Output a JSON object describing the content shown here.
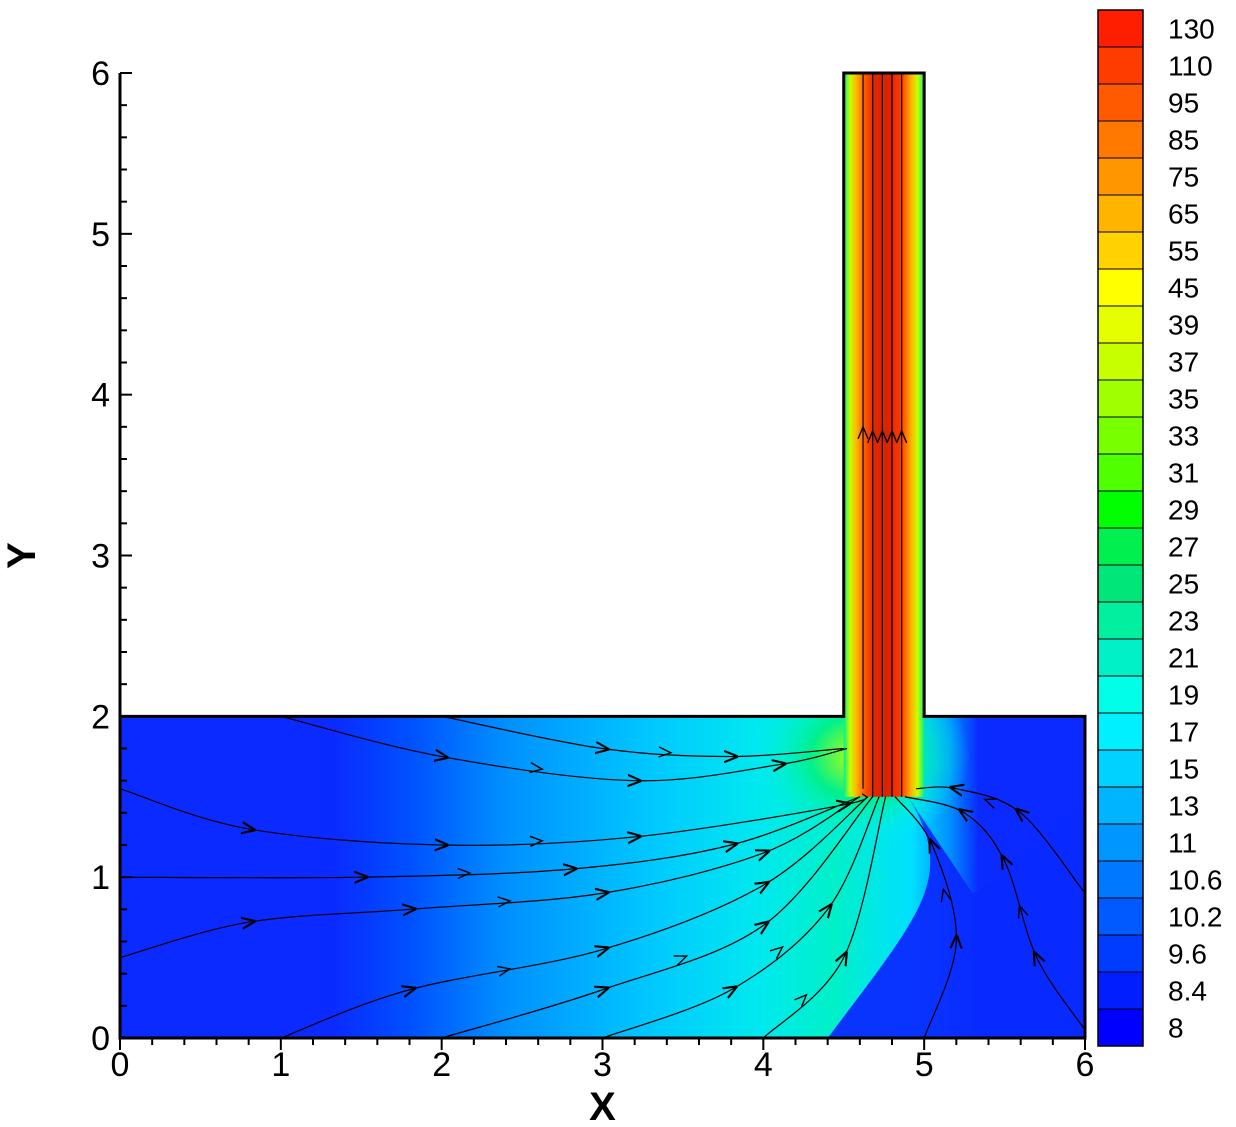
{
  "chart_data": {
    "type": "heatmap",
    "title": "",
    "xlabel": "X",
    "ylabel": "Y",
    "xlim": [
      0,
      6
    ],
    "ylim": [
      0,
      6
    ],
    "xticks": [
      "0",
      "1",
      "2",
      "3",
      "4",
      "5",
      "6"
    ],
    "yticks": [
      "0",
      "1",
      "2",
      "3",
      "4",
      "5",
      "6"
    ],
    "domain": {
      "channel": {
        "x": [
          0,
          6
        ],
        "y": [
          0,
          2
        ]
      },
      "outlet": {
        "x": [
          4.5,
          5
        ],
        "y": [
          1.5,
          6
        ]
      }
    },
    "colorbar": {
      "placement": "right",
      "levels": [
        "130",
        "110",
        "95",
        "85",
        "75",
        "65",
        "55",
        "45",
        "39",
        "37",
        "35",
        "33",
        "31",
        "29",
        "27",
        "25",
        "23",
        "21",
        "19",
        "17",
        "15",
        "13",
        "11",
        "10.6",
        "10.2",
        "9.6",
        "8.4",
        "8"
      ],
      "colors": [
        "#ff1e00",
        "#ff3c00",
        "#ff5a00",
        "#ff7800",
        "#ff9600",
        "#ffb400",
        "#ffd200",
        "#ffff00",
        "#e6ff00",
        "#c8ff00",
        "#a0ff00",
        "#78ff00",
        "#50ff00",
        "#00ff00",
        "#00f050",
        "#00e678",
        "#00f0a0",
        "#00f0c8",
        "#00ffe6",
        "#00f0ff",
        "#00d2ff",
        "#00b4ff",
        "#0096ff",
        "#0078ff",
        "#005aff",
        "#003cff",
        "#001eff",
        "#0000ff"
      ]
    },
    "streamlines_from": [
      {
        "x": 0,
        "y": 0.5
      },
      {
        "x": 0,
        "y": 1.0
      },
      {
        "x": 0,
        "y": 1.55
      },
      {
        "x": 1.0,
        "y": 0
      },
      {
        "x": 2.0,
        "y": 0
      },
      {
        "x": 3.0,
        "y": 0
      },
      {
        "x": 4.0,
        "y": 0
      },
      {
        "x": 5.0,
        "y": 0
      },
      {
        "x": 6.0,
        "y": 0.05
      },
      {
        "x": 6.0,
        "y": 0.9
      },
      {
        "x": 1.0,
        "y": 2.0
      },
      {
        "x": 2.0,
        "y": 2.0
      }
    ]
  }
}
